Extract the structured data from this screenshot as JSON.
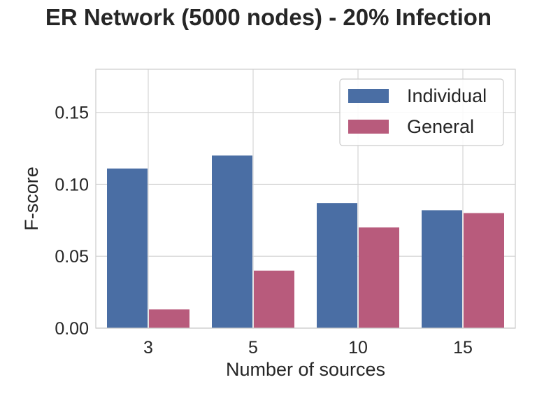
{
  "chart_data": {
    "type": "bar",
    "title": "ER Network (5000 nodes) - 20% Infection",
    "xlabel": "Number of sources",
    "ylabel": "F-score",
    "categories": [
      "3",
      "5",
      "10",
      "15"
    ],
    "series": [
      {
        "name": "Individual",
        "values": [
          0.111,
          0.12,
          0.087,
          0.082
        ],
        "color": "#4a6ea4"
      },
      {
        "name": "General",
        "values": [
          0.013,
          0.04,
          0.07,
          0.08
        ],
        "color": "#b85b7c"
      }
    ],
    "ylim": [
      0,
      0.18
    ],
    "yticks": [
      "0.00",
      "0.05",
      "0.10",
      "0.15"
    ],
    "grid": true,
    "legend_position": "top-right"
  }
}
